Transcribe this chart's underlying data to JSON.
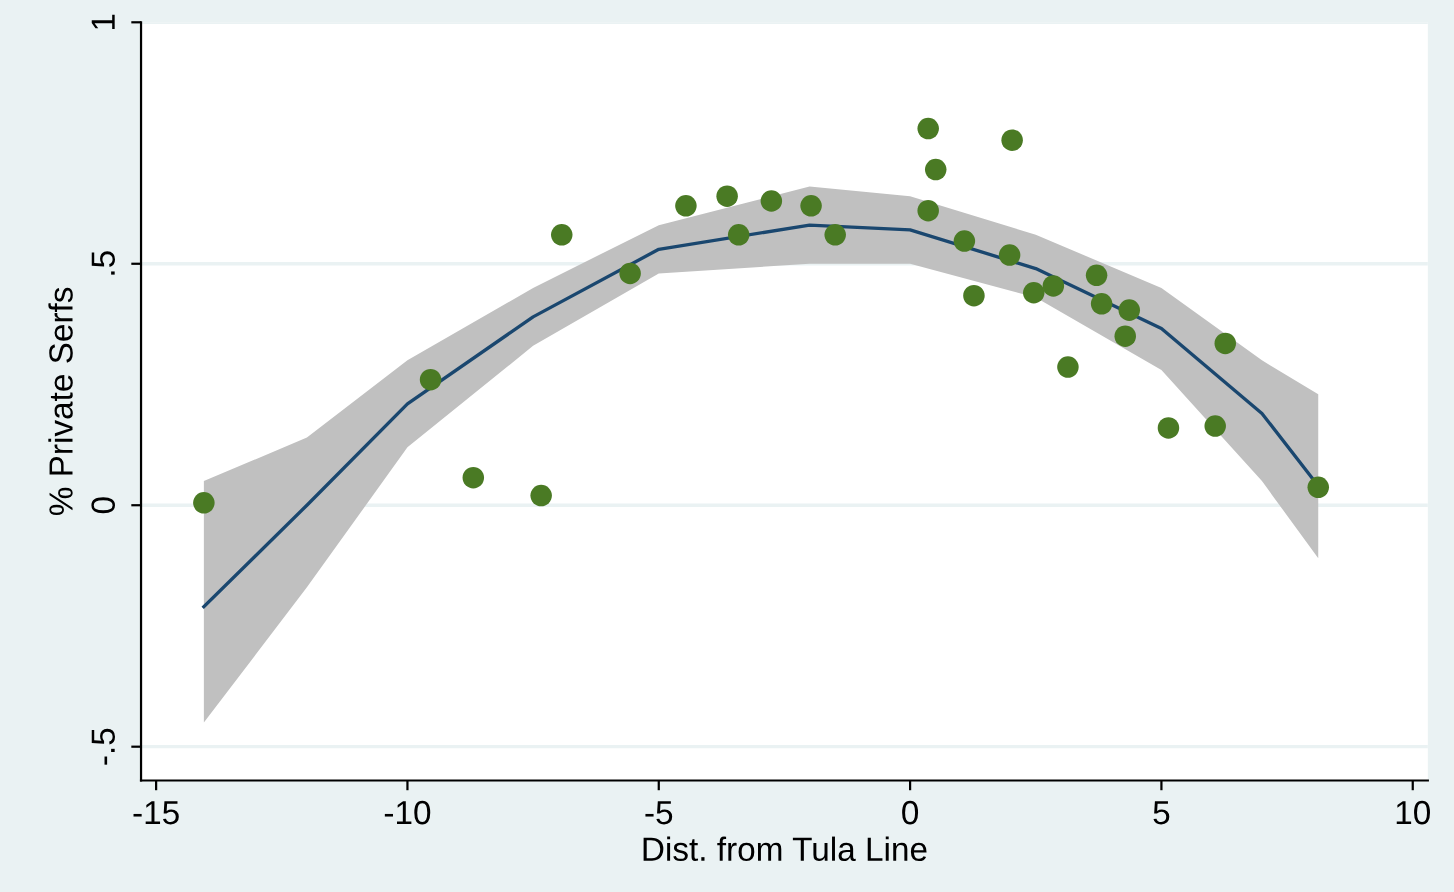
{
  "chart_data": {
    "type": "scatter",
    "xlabel": "Dist. from Tula Line",
    "ylabel": "% Private Serfs",
    "xlim": [
      -15.3,
      10.3
    ],
    "ylim": [
      -0.57,
      1.0
    ],
    "xticks": [
      -15,
      -10,
      -5,
      0,
      5,
      10
    ],
    "yticks": [
      {
        "value": -0.5,
        "label": "-.5"
      },
      0,
      {
        "value": 0.5,
        "label": ".5"
      },
      1
    ],
    "grid": "y",
    "legend": false,
    "marker": "circle",
    "series": [
      {
        "type": "line",
        "color": "#1a476f",
        "line_style": "solid",
        "marker": "none",
        "x": [
          -14.05,
          -12,
          -10,
          -7.5,
          -5,
          -2,
          0,
          2.5,
          5,
          7,
          8.12
        ],
        "values": [
          -0.21,
          0.0,
          0.21,
          0.39,
          0.53,
          0.58,
          0.57,
          0.49,
          0.366,
          0.19,
          0.04
        ],
        "lower": [
          -0.45,
          -0.17,
          0.12,
          0.33,
          0.48,
          0.5,
          0.5,
          0.43,
          0.28,
          0.05,
          -0.11
        ],
        "upper": [
          0.05,
          0.14,
          0.3,
          0.45,
          0.58,
          0.66,
          0.64,
          0.56,
          0.45,
          0.3,
          0.23
        ]
      },
      {
        "color": "#4a7a24",
        "x": [
          -14.05,
          -9.54,
          -8.69,
          -7.34,
          -6.93,
          -5.57,
          -4.46,
          -3.64,
          -3.41,
          -2.76,
          -1.97,
          -1.49,
          0.36,
          0.51,
          0.36,
          2.03,
          1.08,
          1.27,
          1.98,
          2.46,
          2.85,
          3.14,
          3.71,
          3.81,
          4.36,
          4.28,
          5.14,
          6.07,
          6.27,
          8.12
        ],
        "values": [
          0.005,
          0.26,
          0.057,
          0.02,
          0.56,
          0.48,
          0.62,
          0.64,
          0.56,
          0.63,
          0.62,
          0.56,
          0.78,
          0.695,
          0.61,
          0.756,
          0.547,
          0.434,
          0.518,
          0.44,
          0.454,
          0.286,
          0.476,
          0.417,
          0.404,
          0.35,
          0.16,
          0.164,
          0.335,
          0.037
        ]
      }
    ]
  }
}
